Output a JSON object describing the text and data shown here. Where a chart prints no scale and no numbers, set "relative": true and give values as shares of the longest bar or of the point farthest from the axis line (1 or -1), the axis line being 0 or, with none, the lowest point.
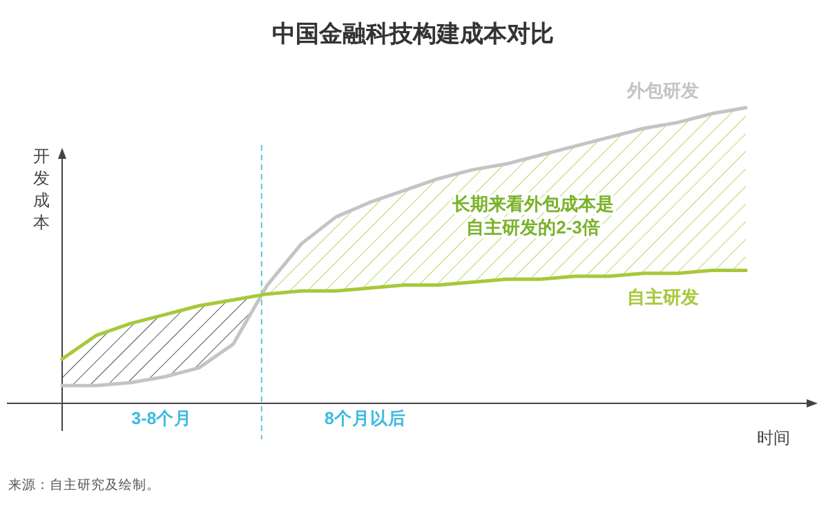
{
  "chart_data": {
    "type": "line",
    "title": "中国金融科技构建成本对比",
    "xlabel": "时间",
    "ylabel": "开发成本",
    "relative": true,
    "categories": [
      null,
      null,
      null,
      null,
      null,
      null,
      null,
      null,
      null,
      null,
      null,
      null,
      null,
      null,
      null,
      null,
      null,
      null,
      null,
      null,
      null
    ],
    "series": [
      {
        "name": "外包研发",
        "color": "#c4c4c4",
        "values": [
          0.06,
          0.06,
          0.07,
          0.09,
          0.12,
          0.2,
          0.4,
          0.54,
          0.63,
          0.68,
          0.72,
          0.76,
          0.79,
          0.81,
          0.84,
          0.87,
          0.9,
          0.93,
          0.95,
          0.98,
          1
        ]
      },
      {
        "name": "自主研发",
        "color": "#a8c83a",
        "values": [
          0.15,
          0.23,
          0.27,
          0.3,
          0.33,
          0.35,
          0.37,
          0.38,
          0.38,
          0.39,
          0.4,
          0.4,
          0.41,
          0.42,
          0.42,
          0.43,
          0.43,
          0.44,
          0.44,
          0.45,
          0.45
        ]
      }
    ],
    "annotations": [
      "3-8个月",
      "8个月以后",
      "长期来看外包成本是自主研发的2-3倍",
      "来源：自主研究及绘制。"
    ],
    "marker": "none",
    "line_style": "solid"
  }
}
